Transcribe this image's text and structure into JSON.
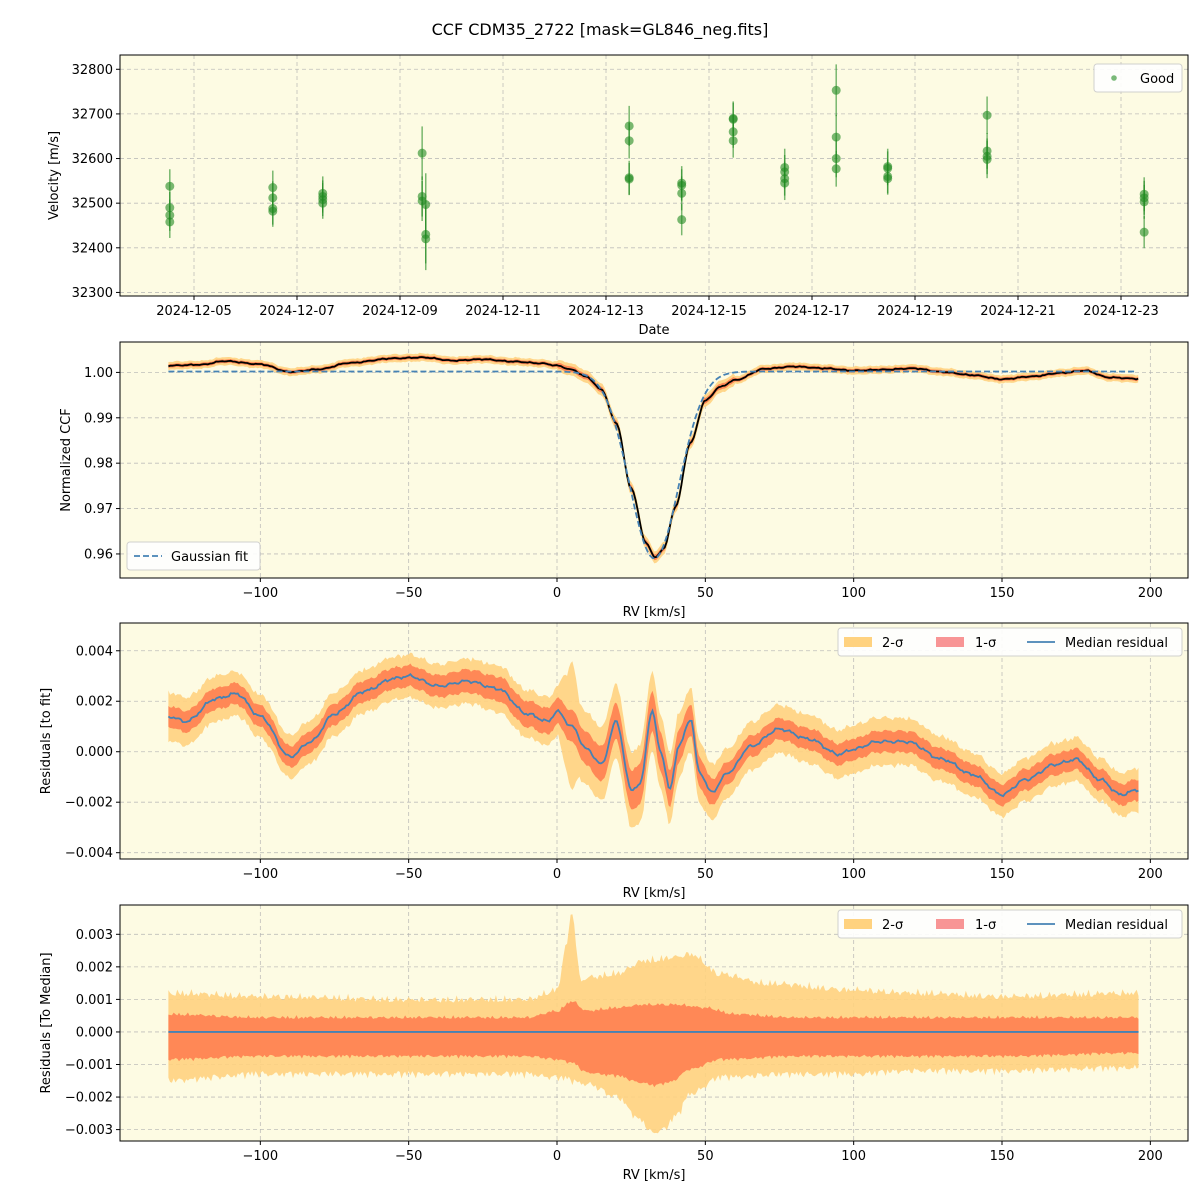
{
  "figure_title": "CCF CDM35_2722 [mask=GL846_neg.fits]",
  "colors": {
    "panel_bg": "#fdfbe3",
    "grid": "#b0b0b0",
    "rv_points": "#228b22",
    "ccf_line": "#000000",
    "ccf_band_2sigma": "#ffd27f",
    "ccf_band_1sigma": "#ff7f50",
    "gauss_fit": "#4682b4",
    "median_residual": "#4682b4",
    "band_2sigma": "#ffd27f",
    "band_1sigma": "#ff7f50",
    "legend_1sigma_swatch": "#f89595"
  },
  "chart_data": [
    {
      "type": "scatter",
      "xlabel": "Date",
      "ylabel": "Velocity [m/s]",
      "x_tick_labels": [
        "2024-12-05",
        "2024-12-07",
        "2024-12-09",
        "2024-12-11",
        "2024-12-13",
        "2024-12-15",
        "2024-12-17",
        "2024-12-19",
        "2024-12-21",
        "2024-12-23"
      ],
      "y_ticks": [
        32300,
        32400,
        32500,
        32600,
        32700,
        32800
      ],
      "ylim": [
        32292,
        32832
      ],
      "grid": true,
      "legend": {
        "position": "top-right",
        "entries": [
          "Good"
        ]
      },
      "series": [
        {
          "name": "Good",
          "x_unit": "days since 2024-12-05",
          "points": [
            {
              "x": -0.47,
              "y": 32538,
              "err": 38
            },
            {
              "x": -0.47,
              "y": 32490,
              "err": 35
            },
            {
              "x": -0.47,
              "y": 32473,
              "err": 35
            },
            {
              "x": -0.47,
              "y": 32458,
              "err": 36
            },
            {
              "x": 1.53,
              "y": 32535,
              "err": 38
            },
            {
              "x": 1.53,
              "y": 32512,
              "err": 37
            },
            {
              "x": 1.53,
              "y": 32488,
              "err": 36
            },
            {
              "x": 1.53,
              "y": 32482,
              "err": 35
            },
            {
              "x": 2.5,
              "y": 32522,
              "err": 38
            },
            {
              "x": 2.5,
              "y": 32515,
              "err": 36
            },
            {
              "x": 2.5,
              "y": 32508,
              "err": 37
            },
            {
              "x": 2.5,
              "y": 32500,
              "err": 35
            },
            {
              "x": 4.43,
              "y": 32612,
              "err": 60
            },
            {
              "x": 4.43,
              "y": 32515,
              "err": 45
            },
            {
              "x": 4.43,
              "y": 32505,
              "err": 45
            },
            {
              "x": 4.5,
              "y": 32497,
              "err": 70
            },
            {
              "x": 4.5,
              "y": 32430,
              "err": 65
            },
            {
              "x": 4.5,
              "y": 32420,
              "err": 70
            },
            {
              "x": 8.45,
              "y": 32673,
              "err": 45
            },
            {
              "x": 8.45,
              "y": 32640,
              "err": 40
            },
            {
              "x": 8.45,
              "y": 32557,
              "err": 38
            },
            {
              "x": 8.45,
              "y": 32554,
              "err": 36
            },
            {
              "x": 9.47,
              "y": 32545,
              "err": 38
            },
            {
              "x": 9.47,
              "y": 32540,
              "err": 36
            },
            {
              "x": 9.47,
              "y": 32522,
              "err": 38
            },
            {
              "x": 9.47,
              "y": 32463,
              "err": 35
            },
            {
              "x": 10.47,
              "y": 32690,
              "err": 38
            },
            {
              "x": 10.47,
              "y": 32688,
              "err": 37
            },
            {
              "x": 10.47,
              "y": 32660,
              "err": 36
            },
            {
              "x": 10.47,
              "y": 32640,
              "err": 38
            },
            {
              "x": 11.47,
              "y": 32580,
              "err": 42
            },
            {
              "x": 11.47,
              "y": 32570,
              "err": 38
            },
            {
              "x": 11.47,
              "y": 32555,
              "err": 38
            },
            {
              "x": 11.47,
              "y": 32545,
              "err": 38
            },
            {
              "x": 12.47,
              "y": 32753,
              "err": 58
            },
            {
              "x": 12.47,
              "y": 32648,
              "err": 50
            },
            {
              "x": 12.47,
              "y": 32600,
              "err": 42
            },
            {
              "x": 12.47,
              "y": 32577,
              "err": 40
            },
            {
              "x": 13.47,
              "y": 32582,
              "err": 40
            },
            {
              "x": 13.47,
              "y": 32578,
              "err": 38
            },
            {
              "x": 13.47,
              "y": 32560,
              "err": 38
            },
            {
              "x": 13.47,
              "y": 32555,
              "err": 36
            },
            {
              "x": 15.4,
              "y": 32697,
              "err": 42
            },
            {
              "x": 15.4,
              "y": 32617,
              "err": 40
            },
            {
              "x": 15.4,
              "y": 32605,
              "err": 40
            },
            {
              "x": 15.4,
              "y": 32598,
              "err": 42
            },
            {
              "x": 18.45,
              "y": 32520,
              "err": 38
            },
            {
              "x": 18.45,
              "y": 32512,
              "err": 38
            },
            {
              "x": 18.45,
              "y": 32503,
              "err": 38
            },
            {
              "x": 18.45,
              "y": 32435,
              "err": 36
            }
          ]
        }
      ]
    },
    {
      "type": "line",
      "xlabel": "RV [km/s]",
      "ylabel": "Normalized CCF",
      "xlim": [
        -147,
        213
      ],
      "ylim": [
        0.9547,
        1.0067
      ],
      "x_ticks": [
        -100,
        -50,
        0,
        50,
        100,
        150,
        200
      ],
      "x_tick_labels": [
        "−100",
        "−50",
        "0",
        "50",
        "100",
        "150",
        "200"
      ],
      "y_ticks": [
        0.96,
        0.97,
        0.98,
        0.99,
        1.0
      ],
      "y_tick_labels": [
        "0.96",
        "0.97",
        "0.98",
        "0.99",
        "1.00"
      ],
      "grid": true,
      "legend": {
        "position": "bottom-left",
        "entries": [
          "Gaussian fit"
        ]
      },
      "gaussian_fit": {
        "baseline": 1.0002,
        "depth": 0.0412,
        "center": 32.8,
        "sigma": 8.3,
        "x_range": [
          -131,
          196
        ]
      },
      "ccf_knots": {
        "x": [
          -131,
          -120,
          -112,
          -100,
          -90,
          -80,
          -70,
          -55,
          -45,
          -35,
          -25,
          -15,
          -5,
          0,
          5,
          10,
          15,
          20,
          25,
          30,
          33,
          36,
          40,
          45,
          50,
          55,
          60,
          70,
          80,
          90,
          100,
          110,
          120,
          130,
          140,
          150,
          160,
          170,
          178,
          186,
          196
        ],
        "y": [
          1.0015,
          1.0017,
          1.0025,
          1.0018,
          1.0001,
          1.0007,
          1.0021,
          1.0031,
          1.0033,
          1.0026,
          1.0029,
          1.0024,
          1.002,
          1.0015,
          1.0006,
          0.999,
          0.9962,
          0.9888,
          0.9745,
          0.9625,
          0.9592,
          0.9612,
          0.9705,
          0.9845,
          0.9938,
          0.9968,
          0.9983,
          1.0008,
          1.0013,
          1.0009,
          1.0004,
          1.0006,
          1.0009,
          1.0001,
          0.9994,
          0.9985,
          0.9991,
          0.9999,
          1.0004,
          0.9989,
          0.9986
        ]
      },
      "band_1sigma_halfwidth": 0.0004,
      "band_2sigma_halfwidth": 0.0008
    },
    {
      "type": "area",
      "xlabel": "RV [km/s]",
      "ylabel": "Residuals [to fit]",
      "xlim": [
        -147,
        213
      ],
      "ylim": [
        -0.00425,
        0.0051
      ],
      "x_ticks": [
        -100,
        -50,
        0,
        50,
        100,
        150,
        200
      ],
      "x_tick_labels": [
        "−100",
        "−50",
        "0",
        "50",
        "100",
        "150",
        "200"
      ],
      "y_ticks": [
        -0.004,
        -0.002,
        0.0,
        0.002,
        0.004
      ],
      "y_tick_labels": [
        "−0.004",
        "−0.002",
        "0.000",
        "0.002",
        "0.004"
      ],
      "grid": true,
      "legend": {
        "position": "top-right",
        "entries": [
          "2-σ",
          "1-σ",
          "Median residual"
        ]
      },
      "median_knots": {
        "x": [
          -131,
          -125,
          -115,
          -108,
          -100,
          -90,
          -83,
          -75,
          -65,
          -55,
          -50,
          -40,
          -30,
          -20,
          -10,
          -3,
          0,
          5,
          10,
          15,
          20,
          25,
          28,
          32,
          35,
          38,
          41,
          45,
          48,
          52,
          58,
          65,
          75,
          85,
          95,
          100,
          108,
          118,
          130,
          140,
          150,
          158,
          168,
          175,
          183,
          190,
          196
        ],
        "y": [
          0.0014,
          0.0012,
          0.0021,
          0.0023,
          0.0014,
          -0.0002,
          0.0004,
          0.0015,
          0.0024,
          0.0029,
          0.003,
          0.0026,
          0.0028,
          0.0025,
          0.0015,
          0.0012,
          0.0016,
          0.001,
          0.0001,
          -0.0005,
          0.0012,
          -0.0015,
          -0.0013,
          0.0016,
          0.0,
          -0.0015,
          0.0002,
          0.0013,
          -0.0008,
          -0.0016,
          -0.0008,
          0.0002,
          0.0009,
          0.0005,
          -0.0001,
          0.0001,
          0.0004,
          0.0004,
          -0.0003,
          -0.0009,
          -0.0017,
          -0.0011,
          -0.0005,
          -0.0003,
          -0.0011,
          -0.0017,
          -0.0015
        ]
      },
      "band_1sigma_halfwidth_knots": {
        "x": [
          -131,
          -100,
          -50,
          0,
          5,
          20,
          30,
          45,
          60,
          100,
          150,
          196
        ],
        "y": [
          0.0004,
          0.0004,
          0.0004,
          0.0005,
          0.0006,
          0.0007,
          0.0008,
          0.0006,
          0.0004,
          0.0004,
          0.0004,
          0.0004
        ]
      },
      "band_2sigma_halfwidth_knots": {
        "x": [
          -131,
          -100,
          -50,
          0,
          3,
          5,
          8,
          20,
          30,
          45,
          60,
          100,
          150,
          196
        ],
        "y": [
          0.0009,
          0.0008,
          0.0008,
          0.0009,
          0.0018,
          0.0025,
          0.0014,
          0.0014,
          0.0015,
          0.0012,
          0.0009,
          0.0009,
          0.0008,
          0.0008
        ]
      }
    },
    {
      "type": "area",
      "xlabel": "RV [km/s]",
      "ylabel": "Residuals [To Median]",
      "xlim": [
        -147,
        213
      ],
      "ylim": [
        -0.00335,
        0.0039
      ],
      "x_ticks": [
        -100,
        -50,
        0,
        50,
        100,
        150,
        200
      ],
      "x_tick_labels": [
        "−100",
        "−50",
        "0",
        "50",
        "100",
        "150",
        "200"
      ],
      "y_ticks": [
        -0.003,
        -0.002,
        -0.001,
        0.0,
        0.001,
        0.002,
        0.003
      ],
      "y_tick_labels": [
        "−0.003",
        "−0.002",
        "−0.001",
        "0.000",
        "0.001",
        "0.002",
        "0.003"
      ],
      "grid": true,
      "legend": {
        "position": "top-right",
        "entries": [
          "2-σ",
          "1-σ",
          "Median residual"
        ]
      },
      "median_value": 0.0,
      "band_1sigma_upper_knots": {
        "x": [
          -131,
          -100,
          -50,
          -10,
          0,
          5,
          10,
          20,
          30,
          40,
          50,
          60,
          80,
          100,
          120,
          150,
          196
        ],
        "y": [
          0.0005,
          0.0004,
          0.0004,
          0.0004,
          0.0006,
          0.0009,
          0.0006,
          0.0007,
          0.0008,
          0.0008,
          0.0007,
          0.0005,
          0.0004,
          0.0004,
          0.0004,
          0.0004,
          0.0004
        ]
      },
      "band_1sigma_lower_knots": {
        "x": [
          -131,
          -100,
          -50,
          -10,
          0,
          5,
          10,
          20,
          28,
          33,
          38,
          45,
          55,
          80,
          100,
          120,
          150,
          196
        ],
        "y": [
          -0.0008,
          -0.0007,
          -0.0007,
          -0.0007,
          -0.0008,
          -0.0009,
          -0.0012,
          -0.0013,
          -0.0015,
          -0.0016,
          -0.0015,
          -0.0011,
          -0.0008,
          -0.0007,
          -0.0007,
          -0.0007,
          -0.0007,
          -0.0006
        ]
      },
      "band_2sigma_upper_knots": {
        "x": [
          -131,
          -100,
          -50,
          -10,
          0,
          3,
          5,
          8,
          12,
          20,
          30,
          40,
          45,
          55,
          70,
          100,
          120,
          150,
          196
        ],
        "y": [
          0.0011,
          0.001,
          0.0009,
          0.0009,
          0.0012,
          0.0025,
          0.0036,
          0.0015,
          0.0016,
          0.0017,
          0.0021,
          0.0022,
          0.0023,
          0.0017,
          0.0014,
          0.0012,
          0.0011,
          0.001,
          0.0011
        ]
      },
      "band_2sigma_lower_knots": {
        "x": [
          -131,
          -100,
          -50,
          -10,
          0,
          10,
          20,
          28,
          32,
          36,
          40,
          45,
          55,
          80,
          100,
          120,
          150,
          196
        ],
        "y": [
          -0.0014,
          -0.0012,
          -0.0012,
          -0.0012,
          -0.0013,
          -0.0015,
          -0.0019,
          -0.0026,
          -0.003,
          -0.0029,
          -0.0025,
          -0.0018,
          -0.0013,
          -0.0012,
          -0.0012,
          -0.0011,
          -0.0011,
          -0.001
        ]
      }
    }
  ]
}
